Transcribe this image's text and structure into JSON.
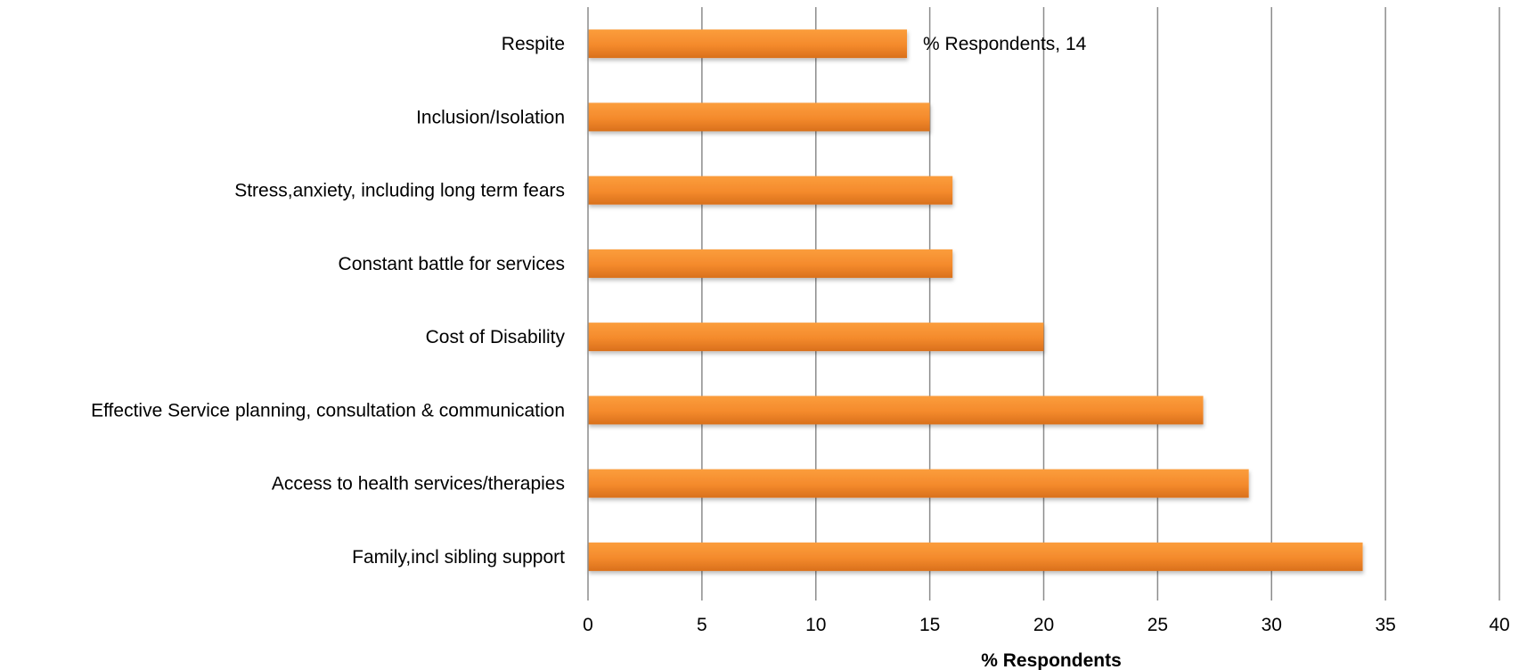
{
  "chart_data": {
    "type": "bar",
    "orientation": "horizontal",
    "categories": [
      "Respite",
      "Inclusion/Isolation",
      "Stress,anxiety, including long term fears",
      "Constant battle for services",
      "Cost of Disability",
      "Effective Service planning, consultation & communication",
      "Access to health services/therapies",
      "Family,incl sibling support"
    ],
    "values": [
      14,
      15,
      16,
      16,
      20,
      27,
      29,
      34
    ],
    "xlabel": "% Respondents",
    "ylabel": "",
    "xlim": [
      0,
      40
    ],
    "x_ticks": [
      "0",
      "5",
      "10",
      "15",
      "20",
      "25",
      "30",
      "35",
      "40"
    ],
    "grid": "vertical",
    "bar_color": "#f79433",
    "bar_color_dark": "#d9701c",
    "annotations": [
      {
        "category": "Respite",
        "text": "% Respondents, 14"
      }
    ]
  }
}
